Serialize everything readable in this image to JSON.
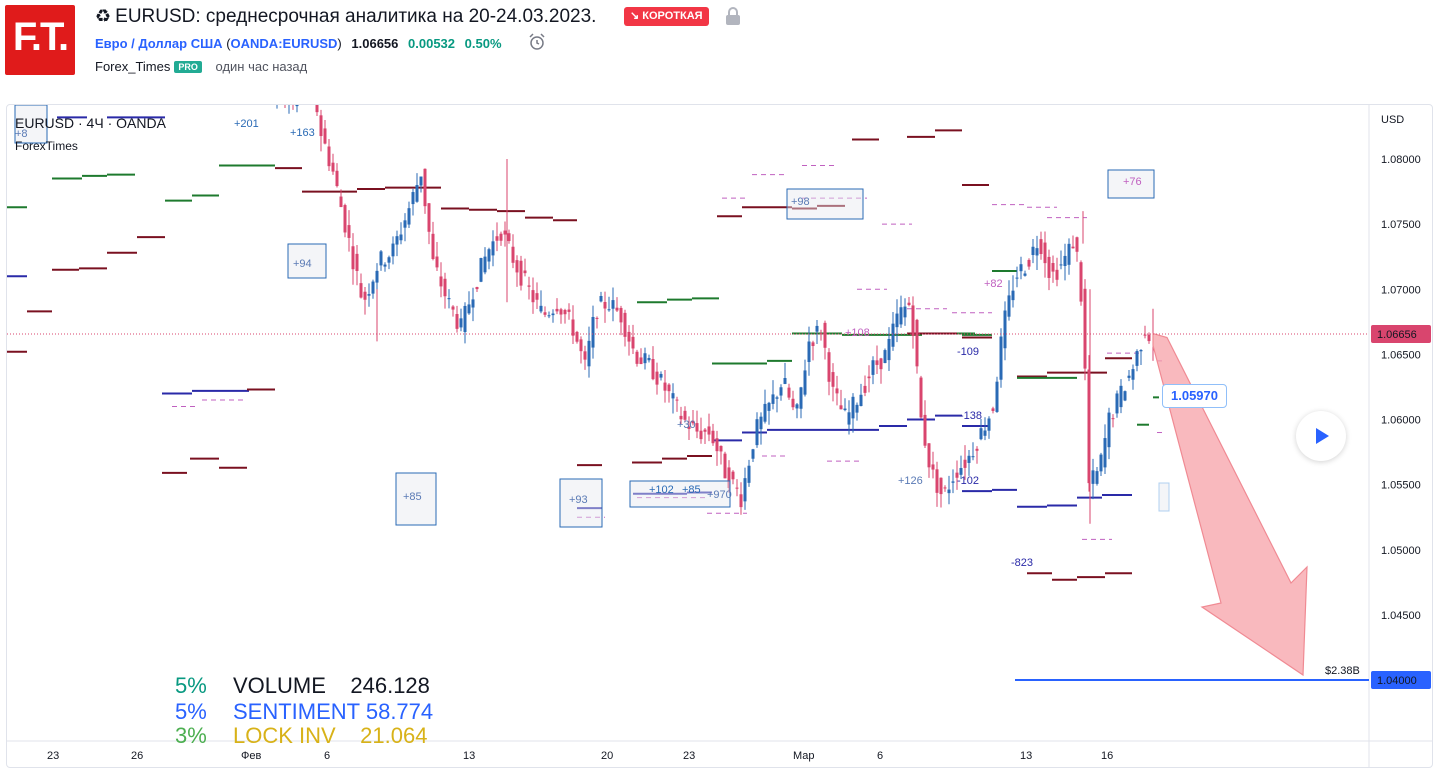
{
  "header": {
    "logo_text": "F.T.",
    "recycle_glyph": "♻",
    "title": "EURUSD: среднесрочная аналитика на 20-24.03.2023.",
    "badge": "↘ КОРОТКАЯ",
    "lock_icon": "lock-icon",
    "pair_name": "Евро / Доллар США",
    "symbol_code": "OANDA:EURUSD",
    "price": "1.06656",
    "change": "0.00532",
    "change_pct": "0.50%",
    "author": "Forex_Times",
    "author_badge": "PRO",
    "posted": "один час назад"
  },
  "chart": {
    "legend_symbol": "EURUSD · 4Ч · OANDA",
    "legend_author": "ForexTimes",
    "currency": "USD",
    "price_ticks": [
      "1.08000",
      "1.07500",
      "1.07000",
      "1.06500",
      "1.06000",
      "1.05500",
      "1.05000",
      "1.04500"
    ],
    "time_ticks": [
      "23",
      "26",
      "Фев",
      "6",
      "13",
      "20",
      "23",
      "Мар",
      "6",
      "13",
      "16"
    ],
    "current_price_label": "1.06656",
    "target_price_label": "1.04000",
    "target_volume_label": "$2.38B",
    "callout_price": "1.05970",
    "annotations": [
      "+201",
      "+163",
      "+94",
      "+85",
      "+93",
      "+102",
      "+85",
      "+970",
      "+98",
      "+108",
      "+76",
      "-109",
      "-138",
      "+126",
      "-102",
      "-823",
      "+82",
      "+30",
      "+8"
    ],
    "colors": {
      "bull": "#2a6ab5",
      "bear": "#d9456e",
      "level_green": "#1e7a2e",
      "level_darkred": "#7a1020",
      "level_blue": "#2a2aa8",
      "arrow": "#f7a1a8",
      "target_line": "#2962ff"
    }
  },
  "indicators": [
    {
      "pct": "5%",
      "label": "VOLUME",
      "value": "246.128",
      "pct_color": "#089981",
      "color": "#131722"
    },
    {
      "pct": "5%",
      "label": "SENTIMENT",
      "value": "58.774",
      "pct_color": "#2962ff",
      "color": "#2962ff"
    },
    {
      "pct": "3%",
      "label": "LOCK INV",
      "value": "21.064",
      "pct_color": "#4caf50",
      "color": "#d8b218"
    }
  ],
  "controls": {
    "play_icon": "play-icon"
  }
}
